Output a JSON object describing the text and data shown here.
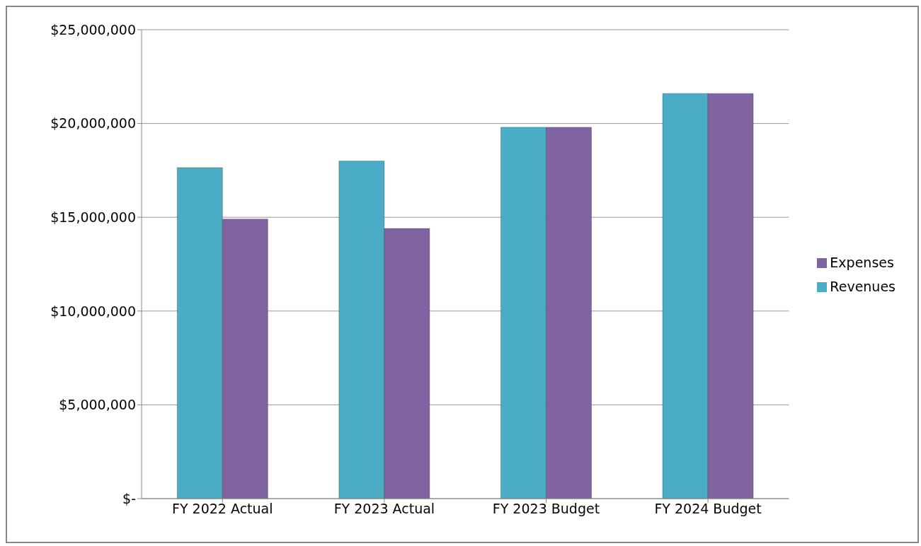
{
  "chart_data": {
    "type": "bar",
    "categories": [
      "FY 2022 Actual",
      "FY 2023 Actual",
      "FY 2023 Budget",
      "FY 2024 Budget"
    ],
    "series": [
      {
        "name": "Revenues",
        "color": "#4bacc6",
        "values": [
          17650000,
          18000000,
          19800000,
          21600000
        ]
      },
      {
        "name": "Expenses",
        "color": "#8064a2",
        "values": [
          14900000,
          14400000,
          19800000,
          21600000
        ]
      }
    ],
    "ylim": [
      0,
      25000000
    ],
    "yticks": [
      {
        "value": 0,
        "label": "$-"
      },
      {
        "value": 5000000,
        "label": "$5,000,000"
      },
      {
        "value": 10000000,
        "label": "$10,000,000"
      },
      {
        "value": 15000000,
        "label": "$15,000,000"
      },
      {
        "value": 20000000,
        "label": "$20,000,000"
      },
      {
        "value": 25000000,
        "label": "$25,000,000"
      }
    ],
    "grid": "y",
    "legend": "right"
  }
}
